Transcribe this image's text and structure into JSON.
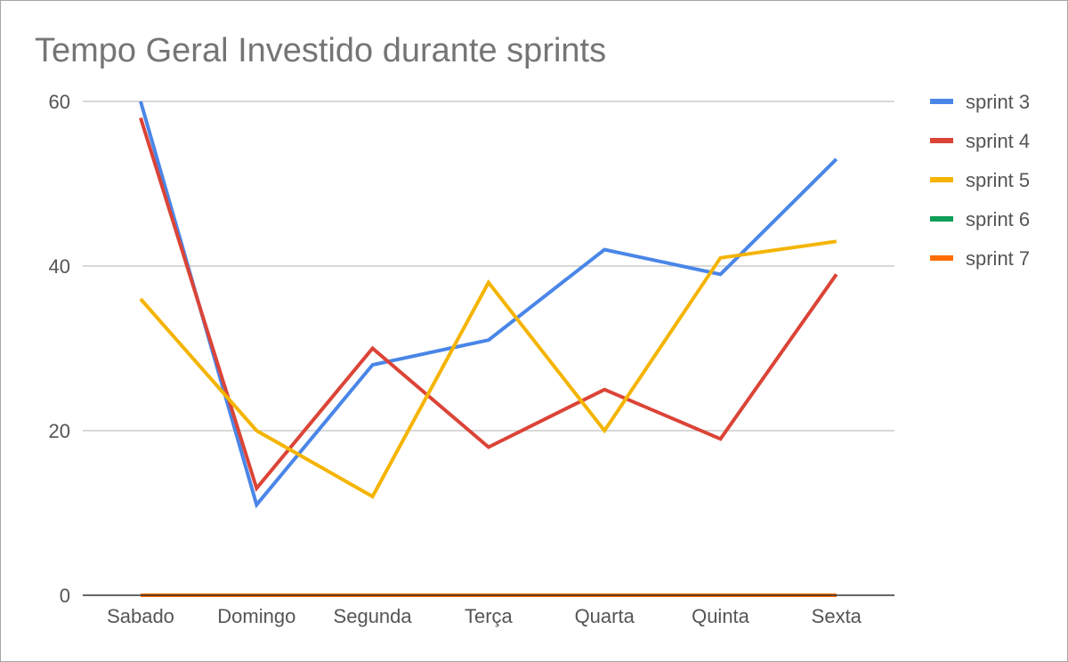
{
  "chart_data": {
    "type": "line",
    "title": "Tempo Geral Investido durante sprints",
    "xlabel": "",
    "ylabel": "",
    "categories": [
      "Sabado",
      "Domingo",
      "Segunda",
      "Terça",
      "Quarta",
      "Quinta",
      "Sexta"
    ],
    "ylim": [
      0,
      60
    ],
    "yticks": [
      0,
      20,
      40,
      60
    ],
    "grid": true,
    "legend_position": "right",
    "series": [
      {
        "name": "sprint 3",
        "color": "#4a86e8",
        "values": [
          60,
          11,
          28,
          31,
          42,
          39,
          53
        ]
      },
      {
        "name": "sprint 4",
        "color": "#db4437",
        "values": [
          58,
          13,
          30,
          18,
          25,
          19,
          39
        ]
      },
      {
        "name": "sprint 5",
        "color": "#f4b400",
        "values": [
          36,
          20,
          12,
          38,
          20,
          41,
          43
        ]
      },
      {
        "name": "sprint 6",
        "color": "#0f9d58",
        "values": [
          0,
          0,
          0,
          0,
          0,
          0,
          0
        ]
      },
      {
        "name": "sprint 7",
        "color": "#ff6d01",
        "values": [
          0,
          0,
          0,
          0,
          0,
          0,
          0
        ]
      }
    ]
  }
}
